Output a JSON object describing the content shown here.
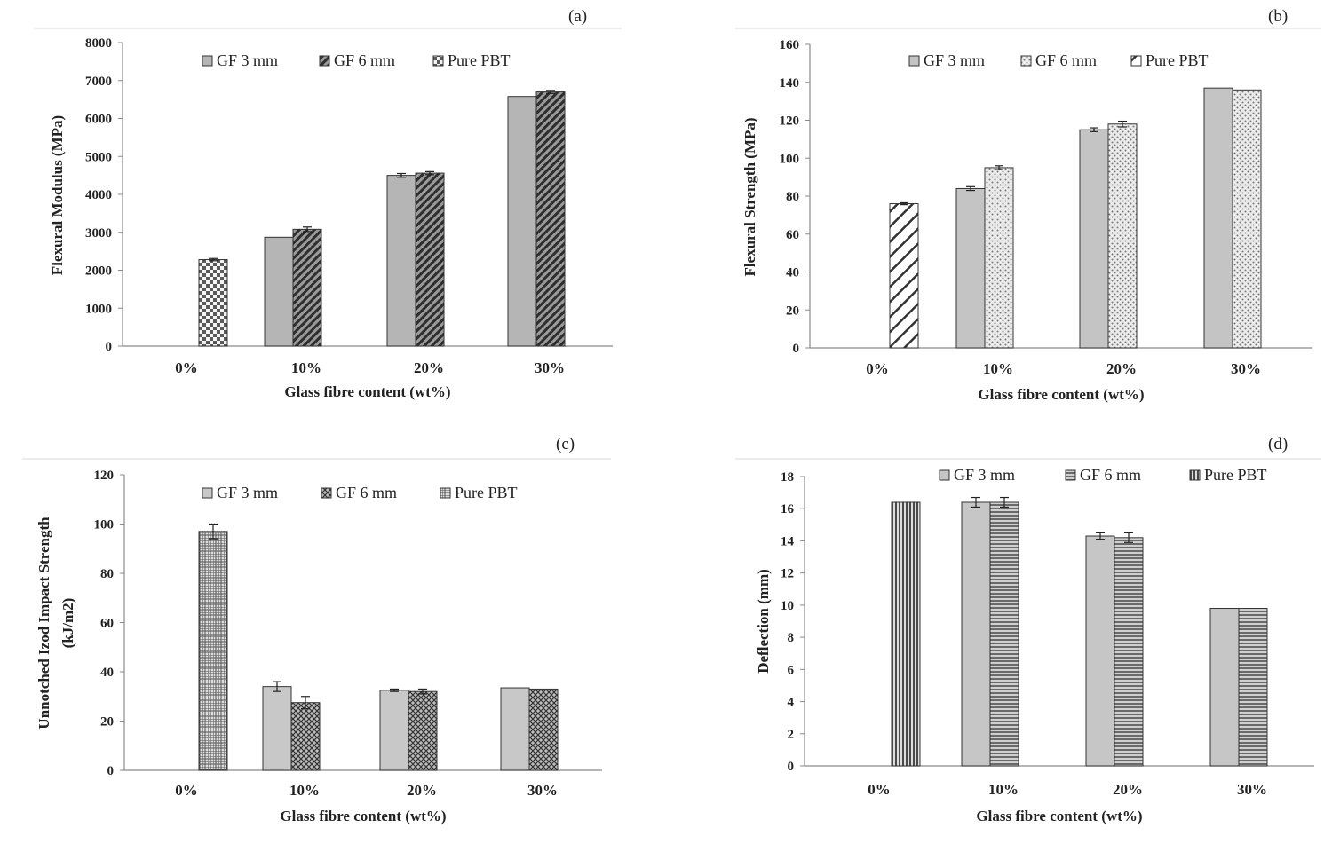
{
  "chart_data": [
    {
      "type": "bar",
      "panel_label": "(a)",
      "xlabel": "Glass fibre content (wt%)",
      "ylabel": "Flexural Modulus (MPa)",
      "categories": [
        "0%",
        "10%",
        "20%",
        "30%"
      ],
      "ylim": [
        0,
        8000
      ],
      "yticks": [
        "0",
        "1000",
        "2000",
        "3000",
        "4000",
        "5000",
        "6000",
        "7000",
        "8000"
      ],
      "legend": [
        "GF 3 mm",
        "GF 6 mm",
        "Pure PBT"
      ],
      "series": [
        {
          "name": "GF 3 mm",
          "values": [
            null,
            2870,
            4500,
            6580
          ],
          "errors": [
            null,
            0,
            50,
            0
          ]
        },
        {
          "name": "GF 6 mm",
          "values": [
            null,
            3080,
            4560,
            6700
          ],
          "errors": [
            null,
            60,
            40,
            40
          ]
        },
        {
          "name": "Pure PBT",
          "values": [
            2280,
            null,
            null,
            null
          ],
          "errors": [
            30,
            null,
            null,
            null
          ]
        }
      ]
    },
    {
      "type": "bar",
      "panel_label": "(b)",
      "xlabel": "Glass fibre content (wt%)",
      "ylabel": "Flexural Strength (MPa)",
      "categories": [
        "0%",
        "10%",
        "20%",
        "30%"
      ],
      "ylim": [
        0,
        160
      ],
      "yticks": [
        "0",
        "20",
        "40",
        "60",
        "80",
        "100",
        "120",
        "140",
        "160"
      ],
      "legend": [
        "GF 3 mm",
        "GF 6 mm",
        "Pure PBT"
      ],
      "series": [
        {
          "name": "GF 3 mm",
          "values": [
            null,
            84,
            115,
            137
          ],
          "errors": [
            null,
            1,
            1,
            0
          ]
        },
        {
          "name": "GF 6 mm",
          "values": [
            null,
            95,
            118,
            136
          ],
          "errors": [
            null,
            1,
            1.5,
            0
          ]
        },
        {
          "name": "Pure PBT",
          "values": [
            76,
            null,
            null,
            null
          ],
          "errors": [
            0.5,
            null,
            null,
            null
          ]
        }
      ]
    },
    {
      "type": "bar",
      "panel_label": "(c)",
      "xlabel": "Glass fibre content (wt%)",
      "ylabel_lines": [
        "Unnotched Izod Impact Strength",
        "(kJ/m2)"
      ],
      "categories": [
        "0%",
        "10%",
        "20%",
        "30%"
      ],
      "ylim": [
        0,
        120
      ],
      "yticks": [
        "0",
        "20",
        "40",
        "60",
        "80",
        "100",
        "120"
      ],
      "legend": [
        "GF 3 mm",
        "GF 6 mm",
        "Pure PBT"
      ],
      "series": [
        {
          "name": "GF 3 mm",
          "values": [
            null,
            34,
            32.5,
            33.5
          ],
          "errors": [
            null,
            2,
            0.5,
            0
          ]
        },
        {
          "name": "GF 6 mm",
          "values": [
            null,
            27.5,
            32,
            33
          ],
          "errors": [
            null,
            2.5,
            1,
            0
          ]
        },
        {
          "name": "Pure PBT",
          "values": [
            97,
            null,
            null,
            null
          ],
          "errors": [
            3,
            null,
            null,
            null
          ]
        }
      ]
    },
    {
      "type": "bar",
      "panel_label": "(d)",
      "xlabel": "Glass fibre content (wt%)",
      "ylabel": "Deflection (mm)",
      "categories": [
        "0%",
        "10%",
        "20%",
        "30%"
      ],
      "ylim": [
        0,
        18
      ],
      "yticks": [
        "0",
        "2",
        "4",
        "6",
        "8",
        "10",
        "12",
        "14",
        "16",
        "18"
      ],
      "legend": [
        "GF 3 mm",
        "GF 6 mm",
        "Pure PBT"
      ],
      "series": [
        {
          "name": "GF 3 mm",
          "values": [
            null,
            16.4,
            14.3,
            9.8
          ],
          "errors": [
            null,
            0.3,
            0.2,
            0
          ]
        },
        {
          "name": "GF 6 mm",
          "values": [
            null,
            16.4,
            14.2,
            9.8
          ],
          "errors": [
            null,
            0.3,
            0.3,
            0
          ]
        },
        {
          "name": "Pure PBT",
          "values": [
            16.4,
            null,
            null,
            null
          ],
          "errors": [
            0,
            null,
            null,
            null
          ]
        }
      ]
    }
  ]
}
